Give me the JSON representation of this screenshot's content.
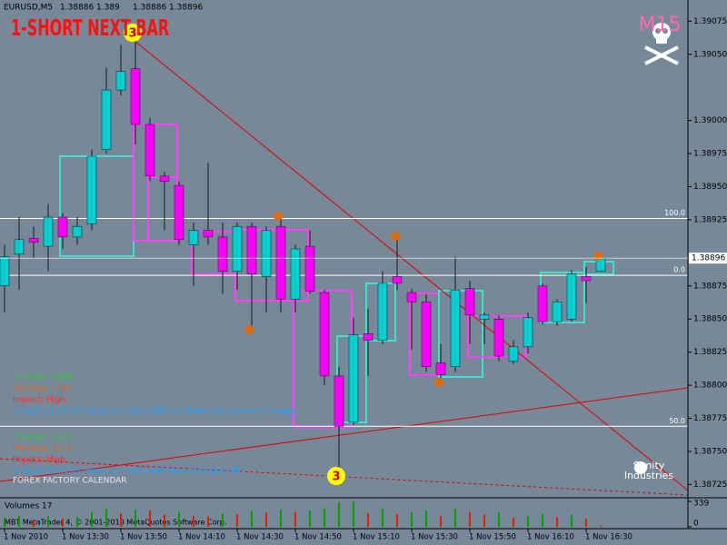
{
  "chart_data": {
    "type": "candlestick",
    "symbol": "EURUSD,M5",
    "title": "1-SHORT NEXT BAR",
    "timeframe_badge": "M15",
    "categories": [
      "1 Nov 2010",
      null,
      null,
      null,
      "1 Nov 13:30",
      null,
      null,
      null,
      "1 Nov 13:50",
      null,
      null,
      null,
      "1 Nov 14:10",
      null,
      null,
      null,
      "1 Nov 14:30",
      null,
      null,
      null,
      "1 Nov 14:50",
      null,
      null,
      null,
      "1 Nov 15:10",
      null,
      null,
      null,
      "1 Nov 15:30",
      null,
      null,
      null,
      "1 Nov 15:50",
      null,
      null,
      null,
      "1 Nov 16:10",
      null,
      null,
      null,
      "1 Nov 16:30",
      null
    ],
    "open": [
      1.38875,
      1.38899,
      1.38911,
      1.38905,
      1.38927,
      1.38912,
      1.38922,
      1.38978,
      1.39023,
      1.39039,
      1.38997,
      1.38958,
      1.38951,
      1.38906,
      1.38917,
      1.38912,
      1.38886,
      1.3892,
      1.38882,
      1.3892,
      1.38865,
      1.38905,
      1.3887,
      1.38807,
      1.38772,
      1.38839,
      1.38834,
      1.38882,
      1.3887,
      1.38863,
      1.38817,
      1.38814,
      1.38873,
      1.3885,
      1.3885,
      1.38818,
      1.38829,
      1.38875,
      1.38848,
      1.3885,
      1.38882,
      1.38886
    ],
    "high": [
      1.38906,
      1.38927,
      1.3892,
      1.38937,
      1.3893,
      1.38927,
      1.38978,
      1.3904,
      1.39057,
      1.39064,
      1.39002,
      1.38961,
      1.38954,
      1.38923,
      1.38968,
      1.38923,
      1.38923,
      1.38923,
      1.3892,
      1.38927,
      1.38906,
      1.38917,
      1.38872,
      1.38814,
      1.38851,
      1.38858,
      1.38886,
      1.3891,
      1.38873,
      1.38869,
      1.38831,
      1.38897,
      1.38879,
      1.38855,
      1.38853,
      1.38834,
      1.38855,
      1.38877,
      1.38865,
      1.38887,
      1.38889,
      1.389
    ],
    "low": [
      1.38855,
      1.38872,
      1.38896,
      1.38886,
      1.38903,
      1.38906,
      1.38917,
      1.38975,
      1.39019,
      1.38982,
      1.38954,
      1.38917,
      1.38906,
      1.38875,
      1.38906,
      1.38869,
      1.38872,
      1.38845,
      1.38855,
      1.38855,
      1.38855,
      1.38869,
      1.388,
      1.38735,
      1.3877,
      1.38807,
      1.38831,
      1.38872,
      1.38827,
      1.3881,
      1.38805,
      1.3881,
      1.38831,
      1.38831,
      1.38818,
      1.38816,
      1.38824,
      1.38846,
      1.38845,
      1.38848,
      1.38862,
      1.38886
    ],
    "close": [
      1.38897,
      1.3891,
      1.38908,
      1.38927,
      1.38912,
      1.3892,
      1.38973,
      1.39023,
      1.39037,
      1.38997,
      1.38958,
      1.38954,
      1.3891,
      1.38917,
      1.38912,
      1.38886,
      1.3892,
      1.38884,
      1.38917,
      1.38865,
      1.38903,
      1.38871,
      1.38807,
      1.38769,
      1.38838,
      1.38834,
      1.38877,
      1.38877,
      1.38863,
      1.38814,
      1.38808,
      1.38872,
      1.38853,
      1.38853,
      1.38822,
      1.38829,
      1.38851,
      1.38848,
      1.38863,
      1.38884,
      1.38879,
      1.38896
    ],
    "up_color": "#00ced1",
    "down_color": "#ff00ff",
    "ylim": [
      1.38715,
      1.39091
    ],
    "yticks": [
      1.39075,
      {
        "value": 1.3905,
        "label": "1.39050"
      },
      {
        "value": 1.39,
        "label": "1.39000"
      },
      1.38975,
      {
        "value": 1.3895,
        "label": "1.38950"
      },
      1.38925,
      1.38875,
      {
        "value": 1.3885,
        "label": "1.38850"
      },
      1.38825,
      {
        "value": 1.388,
        "label": "1.38800"
      },
      1.38775,
      {
        "value": 1.3875,
        "label": "1.38750"
      },
      1.38725
    ],
    "levels": [
      {
        "value": 1.38926,
        "label": "100.0"
      },
      {
        "value": 1.38883,
        "label": "0.0"
      },
      {
        "value": 1.38769,
        "label": "50.0"
      }
    ],
    "volume_title": "Volumes",
    "volumes": [
      120,
      150,
      90,
      140,
      110,
      130,
      200,
      240,
      180,
      230,
      220,
      160,
      200,
      150,
      140,
      180,
      170,
      210,
      190,
      230,
      200,
      220,
      250,
      330,
      339,
      180,
      250,
      170,
      190,
      220,
      140,
      240,
      200,
      160,
      190,
      120,
      150,
      170,
      130,
      160,
      110,
      17
    ],
    "volume_ylim": [
      0,
      339
    ],
    "volume_yticks": [
      339,
      0
    ],
    "news": [
      [
        {
          "text": "Forecast: 225K",
          "color": "#32cd32"
        },
        {
          "text": "Previous: -39K",
          "color": "#d2691e"
        },
        {
          "text": "Impact: High",
          "color": "#ff2a2a"
        },
        {
          "text": "1 days 13 hrs 27 mins until USD: ADP Non-Farm Employment Change",
          "color": "#1ea0ff"
        }
      ],
      [
        {
          "text": "Forecast: 54.2",
          "color": "#32cd32"
        },
        {
          "text": "Previous: 54.4",
          "color": "#d2691e"
        },
        {
          "text": "Impact: High",
          "color": "#ff2a2a"
        },
        {
          "text": "1 days 15 hrs 27 mins until USD: ISM Manufacturing PMI",
          "color": "#1ea0ff"
        }
      ]
    ],
    "calendar_title": "FOREX FACTORY CALENDAR",
    "signal_markers": [
      "3",
      "3"
    ],
    "logo": [
      "Sanity",
      "Industries"
    ],
    "footer": "MBT MetaTrader 4, © 2001-2010 MetaQuotes Software Corp."
  }
}
